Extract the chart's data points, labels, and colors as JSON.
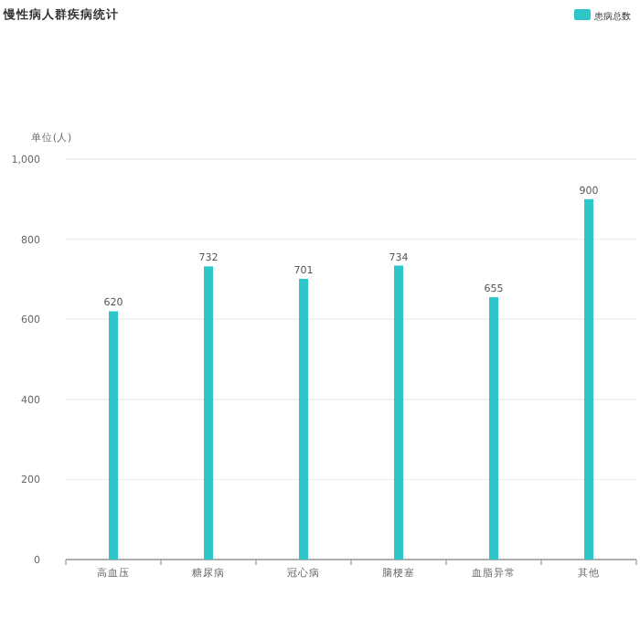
{
  "chart_data": {
    "type": "bar",
    "title": "慢性病人群疾病统计",
    "ylabel": "单位(人)",
    "categories": [
      "高血压",
      "糖尿病",
      "冠心病",
      "脑梗塞",
      "血脂异常",
      "其他"
    ],
    "series": [
      {
        "name": "患病总数",
        "color": "#2ec7c9",
        "values": [
          620,
          732,
          701,
          734,
          655,
          900
        ]
      }
    ],
    "ylim": [
      0,
      1000
    ],
    "yticks": [
      0,
      200,
      400,
      600,
      800,
      {
        "value": 1000,
        "label": "1,000"
      }
    ],
    "grid": "y",
    "legend": "top right",
    "data_labels": true
  }
}
